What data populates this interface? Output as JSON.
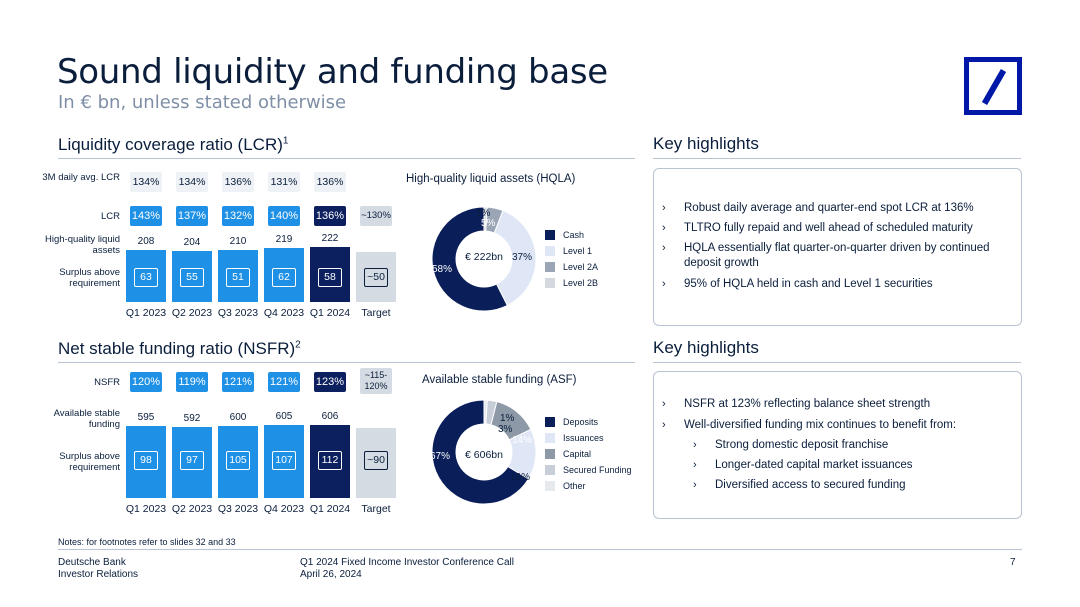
{
  "header": {
    "title": "Sound liquidity and funding base",
    "subtitle": "In € bn, unless stated otherwise",
    "logo_icon": "deutsche-bank-logo-icon"
  },
  "lcr": {
    "title": "Liquidity coverage ratio (LCR)",
    "title_sup": "1",
    "row_labels": {
      "daily_avg": "3M daily avg. LCR",
      "ratio": "LCR",
      "hqla": "High-quality liquid assets",
      "surplus": "Surplus above requirement"
    },
    "daily_avg": [
      "134%",
      "134%",
      "136%",
      "131%",
      "136%"
    ],
    "ratio": [
      "143%",
      "137%",
      "132%",
      "140%",
      "136%",
      "~130%"
    ],
    "categories": [
      "Q1 2023",
      "Q2 2023",
      "Q3 2023",
      "Q4 2023",
      "Q1 2024",
      "Target"
    ],
    "hqla": [
      "208",
      "204",
      "210",
      "219",
      "222"
    ],
    "surplus": [
      "63",
      "55",
      "51",
      "62",
      "58",
      "~50"
    ],
    "chart_data": {
      "type": "bar",
      "categories": [
        "Q1 2023",
        "Q2 2023",
        "Q3 2023",
        "Q4 2023",
        "Q1 2024",
        "Target"
      ],
      "values": [
        208,
        204,
        210,
        219,
        222,
        null
      ]
    }
  },
  "hqla_donut": {
    "title": "High-quality liquid assets (HQLA)",
    "center": "€ 222bn",
    "chart_data": {
      "type": "pie",
      "categories": [
        "Cash",
        "Level 1",
        "Level 2A",
        "Level 2B"
      ],
      "values": [
        58,
        37,
        5,
        1
      ],
      "labels": [
        "58%",
        "37%",
        "5%",
        "1%"
      ],
      "colors": [
        "#0a1e5a",
        "#dfe7f7",
        "#9aa5b5",
        "#d4d9e0"
      ]
    }
  },
  "nsfr": {
    "title": "Net stable funding ratio (NSFR)",
    "title_sup": "2",
    "row_labels": {
      "ratio": "NSFR",
      "asf": "Available stable funding",
      "surplus": "Surplus above requirement"
    },
    "ratio": [
      "120%",
      "119%",
      "121%",
      "121%",
      "123%"
    ],
    "target_ratio": "~115-120%",
    "categories": [
      "Q1 2023",
      "Q2 2023",
      "Q3 2023",
      "Q4 2023",
      "Q1 2024",
      "Target"
    ],
    "asf": [
      "595",
      "592",
      "600",
      "605",
      "606"
    ],
    "surplus": [
      "98",
      "97",
      "105",
      "107",
      "112",
      "~90"
    ],
    "chart_data": {
      "type": "bar",
      "categories": [
        "Q1 2023",
        "Q2 2023",
        "Q3 2023",
        "Q4 2023",
        "Q1 2024",
        "Target"
      ],
      "values": [
        595,
        592,
        600,
        605,
        606,
        null
      ]
    }
  },
  "asf_donut": {
    "title": "Available stable funding (ASF)",
    "center": "€ 606bn",
    "chart_data": {
      "type": "pie",
      "categories": [
        "Deposits",
        "Issuances",
        "Capital",
        "Secured Funding",
        "Other"
      ],
      "values": [
        67,
        16,
        14,
        3,
        1
      ],
      "labels": [
        "67%",
        "16%",
        "14%",
        "3%",
        "1%"
      ],
      "colors": [
        "#0a1e5a",
        "#dfe7f7",
        "#8e99a8",
        "#c8ced8",
        "#e6e9ee"
      ]
    }
  },
  "highlights1": {
    "title": "Key highlights",
    "items": [
      "Robust daily average and quarter-end spot LCR at 136%",
      "TLTRO fully repaid and well ahead of scheduled maturity",
      "HQLA essentially flat quarter-on-quarter driven by continued deposit growth",
      "95% of HQLA held in cash and Level 1 securities"
    ]
  },
  "highlights2": {
    "title": "Key highlights",
    "items": [
      "NSFR at 123% reflecting balance sheet strength",
      "Well-diversified funding mix continues to benefit from:"
    ],
    "subitems": [
      "Strong domestic deposit franchise",
      "Longer-dated capital market issuances",
      "Diversified access to secured funding"
    ]
  },
  "footer": {
    "notes": "Notes: for footnotes refer to slides 32 and 33",
    "company": "Deutsche Bank",
    "department": "Investor Relations",
    "event": "Q1 2024 Fixed Income Investor Conference Call",
    "date": "April 26, 2024",
    "page": "7"
  },
  "colors": {
    "navy": "#0a1e3c",
    "bright_blue": "#1e90e6",
    "dark_navy": "#0c1f5e",
    "grey_target": "#d5dbe3",
    "logo_blue": "#0018a8"
  }
}
